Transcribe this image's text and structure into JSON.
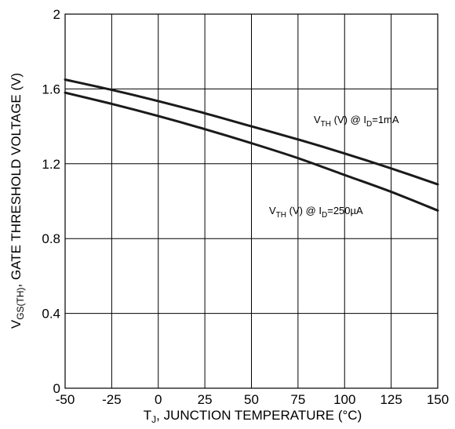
{
  "chart_data": {
    "type": "line",
    "xlabel_parts": {
      "main": "T",
      "sub": "J",
      "rest": ", JUNCTION TEMPERATURE (°C)"
    },
    "ylabel_parts": {
      "main": "V",
      "sub": "GS(TH)",
      "rest": ", GATE THRESHOLD VOLTAGE (V)"
    },
    "xlim": [
      -50,
      150
    ],
    "ylim": [
      0,
      2
    ],
    "xticks": [
      -50,
      -25,
      0,
      25,
      50,
      75,
      100,
      125,
      150
    ],
    "yticks": [
      0,
      0.4,
      0.8,
      1.2,
      1.6,
      2
    ],
    "xtick_labels": [
      "-50",
      "-25",
      "0",
      "25",
      "50",
      "75",
      "100",
      "125",
      "150"
    ],
    "ytick_labels": [
      "0",
      "0.4",
      "0.8",
      "1.2",
      "1.6",
      "2"
    ],
    "grid": true,
    "series": [
      {
        "label_parts": {
          "v": "V",
          "vsub": "TH",
          "mid": " (V) @ I",
          "isub": "D",
          "end": "=1mA"
        },
        "x": [
          -50,
          -25,
          0,
          25,
          50,
          75,
          100,
          125,
          150
        ],
        "y": [
          1.65,
          1.595,
          1.535,
          1.47,
          1.4,
          1.33,
          1.255,
          1.175,
          1.09
        ]
      },
      {
        "label_parts": {
          "v": "V",
          "vsub": "TH",
          "mid": " (V) @ I",
          "isub": "D",
          "end": "=250µA"
        },
        "x": [
          -50,
          -25,
          0,
          25,
          50,
          75,
          100,
          125,
          150
        ],
        "y": [
          1.58,
          1.52,
          1.455,
          1.385,
          1.31,
          1.23,
          1.14,
          1.05,
          0.95
        ]
      }
    ]
  }
}
